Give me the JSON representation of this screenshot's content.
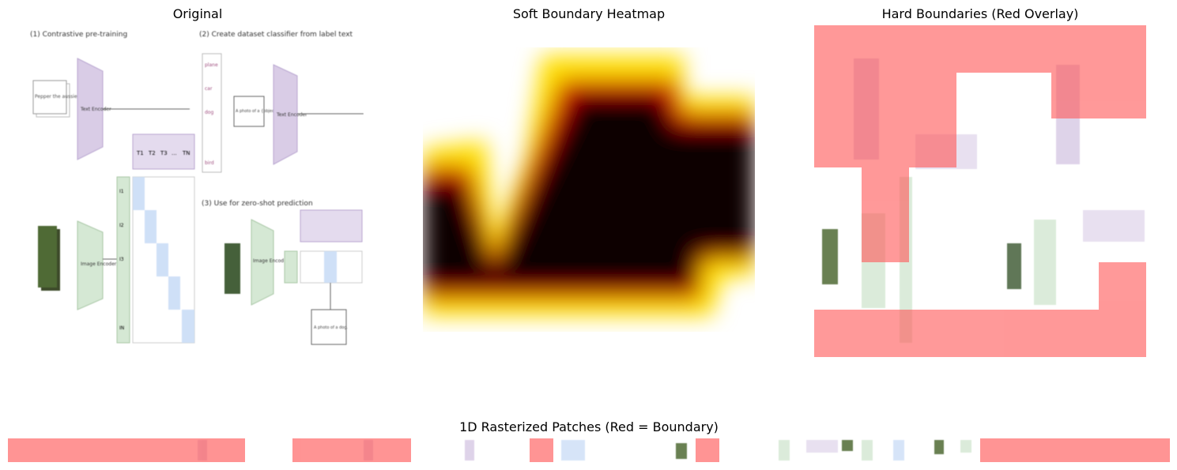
{
  "panels": {
    "original": {
      "title": "Original"
    },
    "heatmap": {
      "title": "Soft Boundary Heatmap"
    },
    "hard": {
      "title": "Hard Boundaries (Red Overlay)"
    },
    "strip": {
      "title": "1D Rasterized Patches (Red = Boundary)"
    }
  },
  "figure": {
    "s1": "(1) Contrastive pre-training",
    "s2": "(2) Create dataset classifier from label text",
    "s3": "(3) Use for zero-shot prediction",
    "pepper": "Pepper the aussie pup",
    "text_encoder": "Text Encoder",
    "image_encoder": "Image Encoder",
    "labels": [
      "plane",
      "car",
      "dog",
      "bird"
    ],
    "photo_template": "A photo of a {object}.",
    "photo_dog": "A photo of a dog.",
    "t_tokens": [
      "T1",
      "T2",
      "T3",
      "...",
      "TN"
    ],
    "i_tokens": [
      "I1",
      "I2",
      "I3",
      "IN"
    ]
  },
  "colors": {
    "text_encoder": "#d9cce6",
    "image_encoder": "#d5e8d4",
    "highlight": "#cfe0f7",
    "boundary": "#ff5a5a",
    "heat_dark": "#0b0000"
  }
}
